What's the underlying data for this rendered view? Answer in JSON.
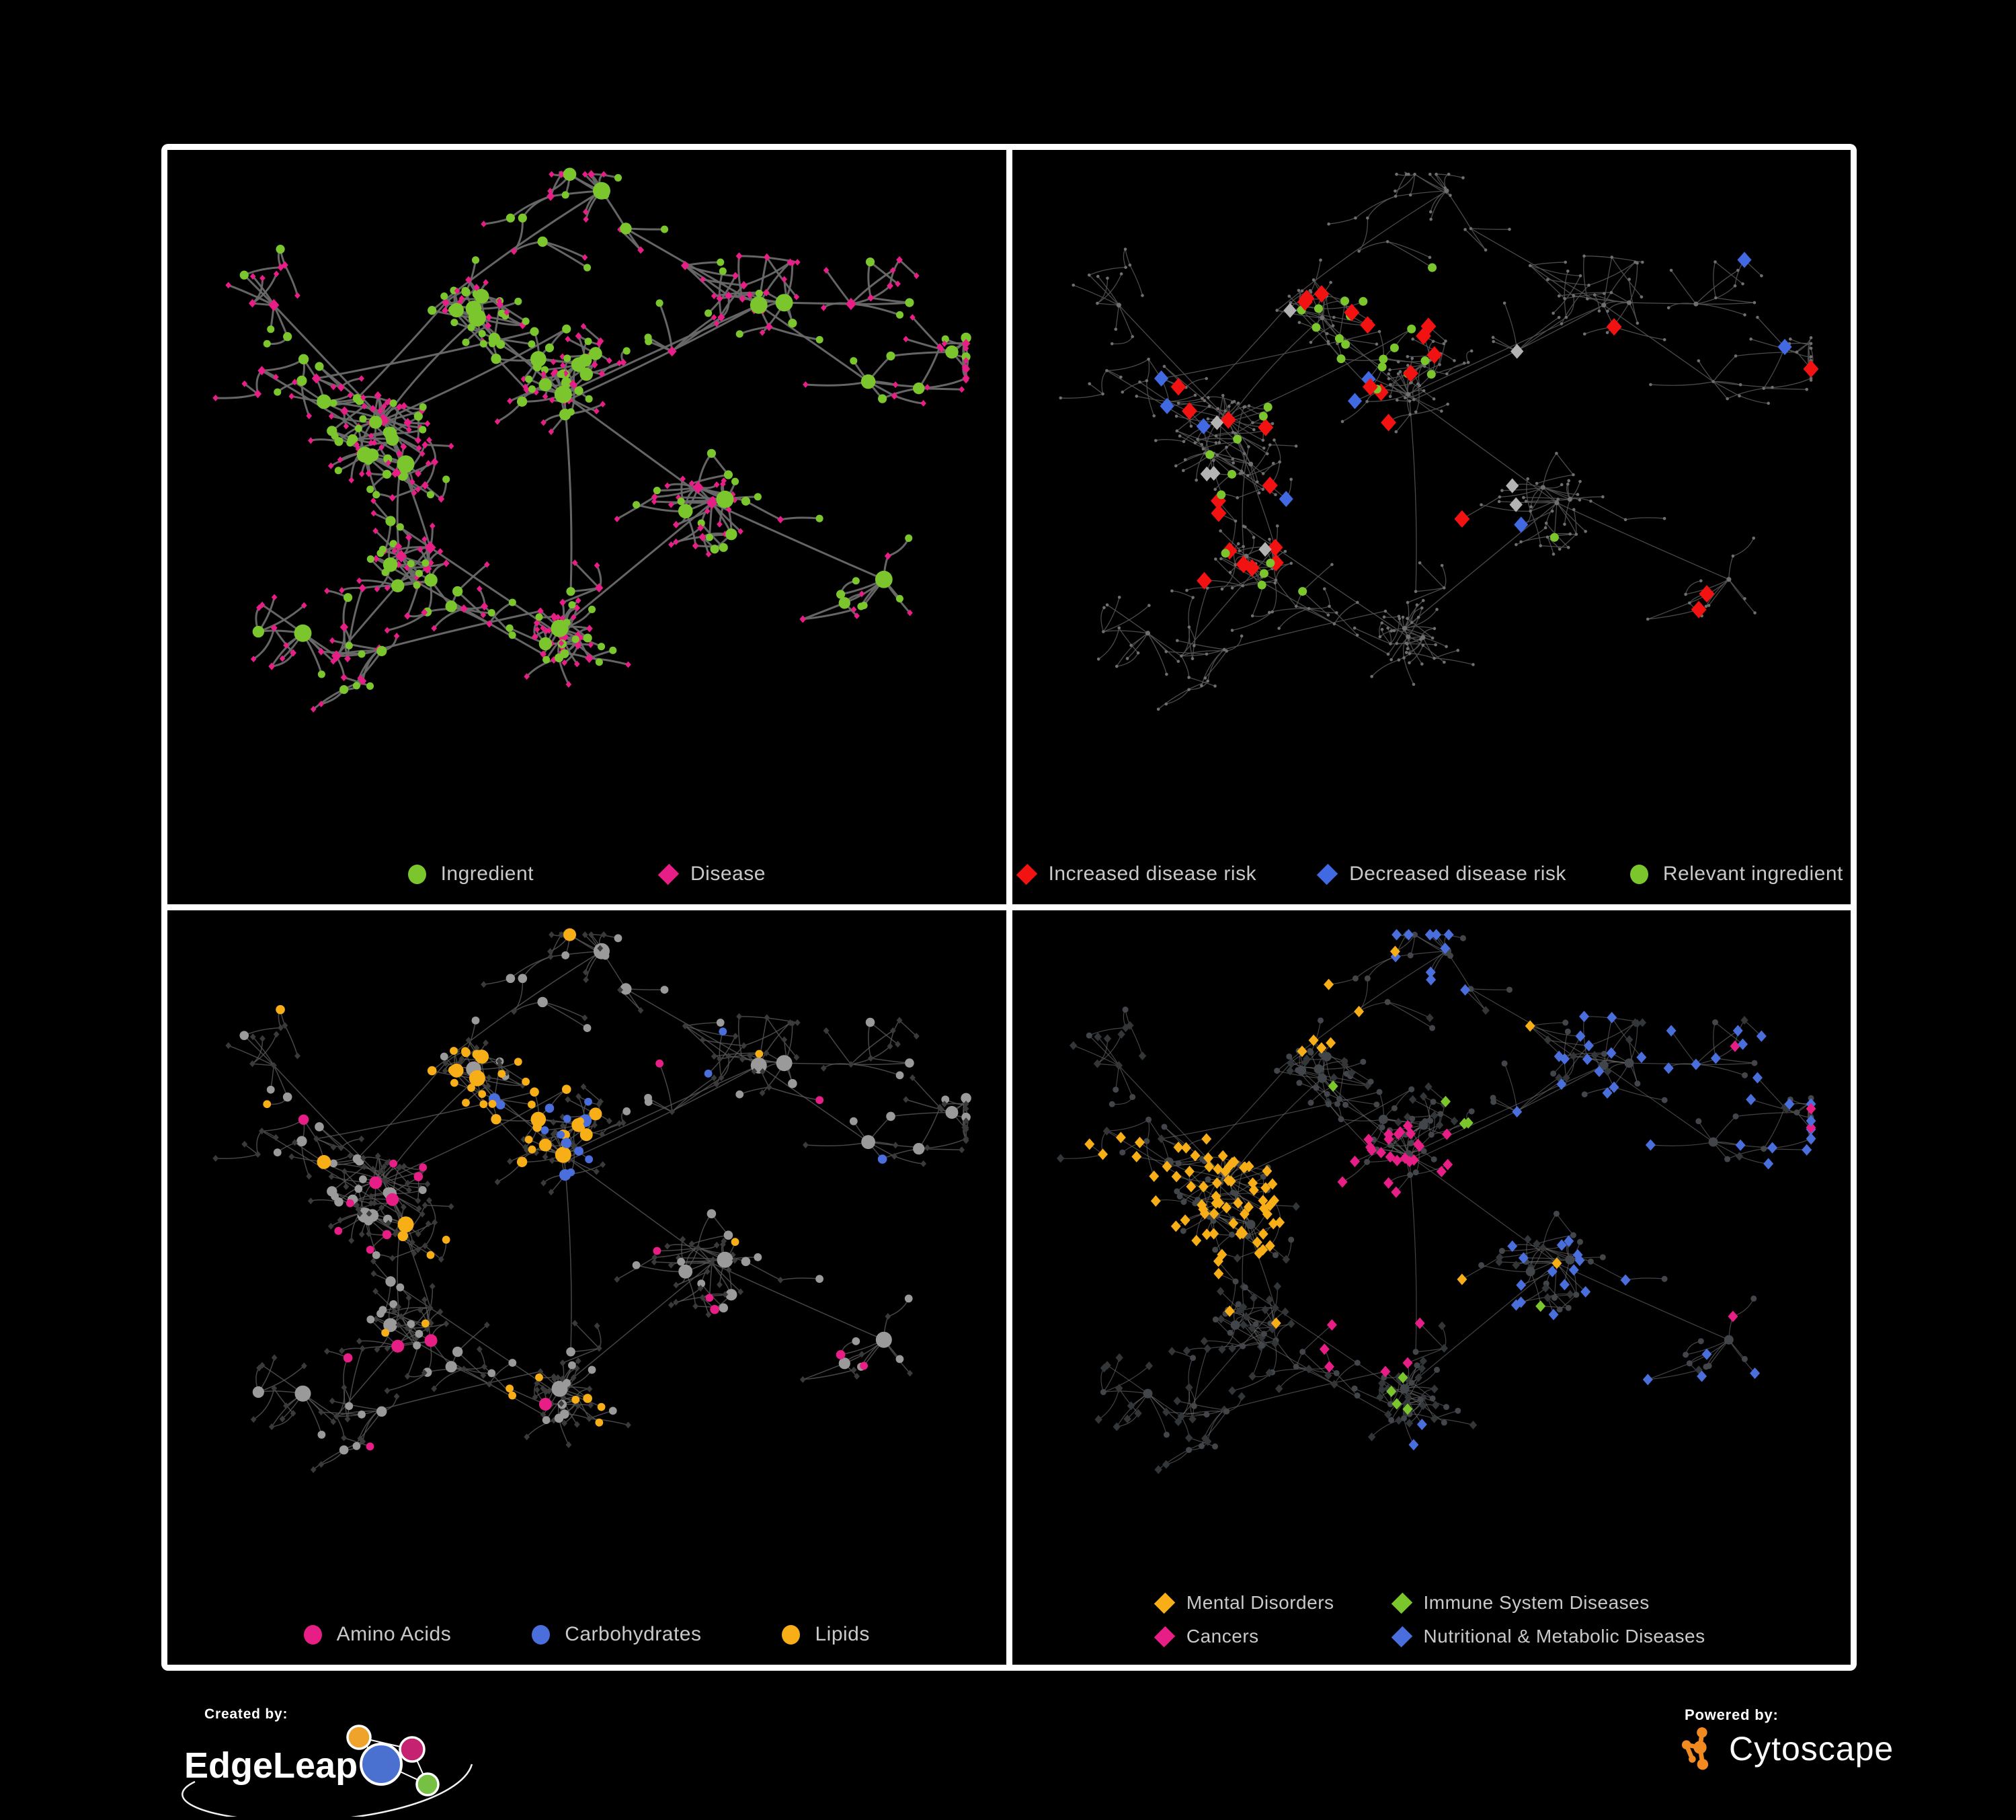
{
  "panels": [
    {
      "id": "ingredient-disease",
      "legend": [
        {
          "label": "Ingredient",
          "shape": "circle",
          "color": "#7cc62d"
        },
        {
          "label": "Disease",
          "shape": "diamond",
          "color": "#e81e87"
        }
      ],
      "style": {
        "ingredient_color": "#7cc62d",
        "disease_color": "#e81e87",
        "edge_color": "#6a6a6a",
        "edge_width": 3,
        "edge_opacity": 0.95
      }
    },
    {
      "id": "disease-risk",
      "legend": [
        {
          "label": "Increased disease risk",
          "shape": "diamond",
          "color": "#f21212"
        },
        {
          "label": "Decreased disease risk",
          "shape": "diamond",
          "color": "#4169e1"
        },
        {
          "label": "Relevant ingredient",
          "shape": "circle",
          "color": "#7cc62d"
        }
      ],
      "style": {
        "increased_color": "#f21212",
        "decreased_color": "#4169e1",
        "relevant_color": "#7cc62d",
        "neutral_color": "#b3b3b3",
        "base_color": "#6f6f6f",
        "edge_color": "#525252",
        "edge_width": 1.3,
        "edge_opacity": 0.9
      }
    },
    {
      "id": "ingredient-classes",
      "legend": [
        {
          "label": "Amino Acids",
          "shape": "circle",
          "color": "#e81e87"
        },
        {
          "label": "Carbohydrates",
          "shape": "circle",
          "color": "#4a6fdc"
        },
        {
          "label": "Lipids",
          "shape": "circle",
          "color": "#f7ae17"
        }
      ],
      "style": {
        "amino_color": "#e81e87",
        "carb_color": "#4a6fdc",
        "lipid_color": "#f7ae17",
        "ingredient_base": "#9a9a9a",
        "disease_base": "#3a3a3a",
        "edge_color": "#585858",
        "edge_width": 1.5,
        "edge_opacity": 0.8
      }
    },
    {
      "id": "disease-classes",
      "legend": [
        {
          "label": "Mental Disorders",
          "shape": "diamond",
          "color": "#f7ae17"
        },
        {
          "label": "Immune System Diseases",
          "shape": "diamond",
          "color": "#7cc62d"
        },
        {
          "label": "Cancers",
          "shape": "diamond",
          "color": "#e81e87"
        },
        {
          "label": "Nutritional & Metabolic Diseases",
          "shape": "diamond",
          "color": "#4a6fdc"
        }
      ],
      "style": {
        "mental_color": "#f7ae17",
        "immune_color": "#7cc62d",
        "cancer_color": "#e81e87",
        "nutritional_color": "#4a6fdc",
        "disease_base": "#323639",
        "ingredient_base": "#42464a",
        "edge_color": "#6f6f6f",
        "edge_width": 1.2,
        "edge_opacity": 0.6
      }
    }
  ],
  "footer": {
    "created_by_label": "Created by:",
    "edgeleap_name": "EdgeLeap",
    "powered_by_label": "Powered by:",
    "cytoscape_name": "Cytoscape",
    "edgeleap_node_colors": {
      "orange": "#efa32b",
      "magenta": "#c52371",
      "blue": "#4a71cf",
      "green": "#76c043"
    },
    "cytoscape_color": "#f18a21"
  },
  "network": {
    "seed": 7,
    "node_count": 540,
    "extra_edges": 42,
    "clusters": [
      [
        0.24,
        0.4,
        0.2,
        1.0
      ],
      [
        0.36,
        0.24,
        0.1,
        1.0
      ],
      [
        0.47,
        0.36,
        0.13,
        0.9
      ],
      [
        0.3,
        0.6,
        0.11,
        1.0
      ],
      [
        0.47,
        0.74,
        0.09,
        0.9
      ],
      [
        0.66,
        0.53,
        0.08,
        1.2
      ],
      [
        0.72,
        0.22,
        0.09,
        1.4
      ],
      [
        0.18,
        0.77,
        0.06,
        1.3
      ],
      [
        0.86,
        0.34,
        0.05,
        1.3
      ],
      [
        0.55,
        0.1,
        0.04,
        1.2
      ],
      [
        0.88,
        0.65,
        0.03,
        1.3
      ],
      [
        0.1,
        0.22,
        0.02,
        1.2
      ]
    ]
  }
}
